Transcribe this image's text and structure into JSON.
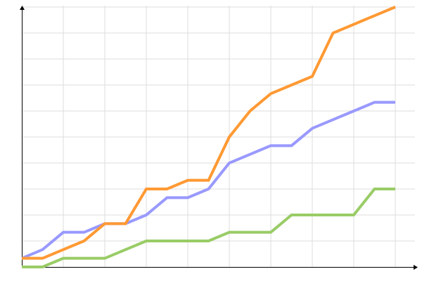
{
  "chart_data": {
    "type": "line",
    "title": "",
    "xlabel": "",
    "ylabel": "",
    "x": [
      0,
      1,
      2,
      3,
      4,
      5,
      6,
      7,
      8,
      9,
      10,
      11,
      12,
      13,
      14,
      15,
      16,
      17,
      18
    ],
    "xlim": [
      0,
      19
    ],
    "ylim": [
      0,
      30
    ],
    "x_grid_step": 2,
    "y_grid_step": 3,
    "grid": true,
    "legend": "none",
    "series": [
      {
        "color": "#9999ff",
        "values": [
          1,
          2,
          4,
          4,
          5,
          5,
          6,
          8,
          8,
          9,
          12,
          13,
          14,
          14,
          16,
          17,
          18,
          19,
          19
        ]
      },
      {
        "color": "#ff9933",
        "values": [
          1,
          1,
          2,
          3,
          5,
          5,
          9,
          9,
          10,
          10,
          15,
          18,
          20,
          21,
          22,
          27,
          28,
          29,
          30
        ]
      },
      {
        "color": "#99cc66",
        "values": [
          0,
          0,
          1,
          1,
          1,
          2,
          3,
          3,
          3,
          3,
          4,
          4,
          4,
          6,
          6,
          6,
          6,
          9,
          9
        ]
      }
    ],
    "grid_color": "#dddddd",
    "axis_color": "#000000"
  }
}
